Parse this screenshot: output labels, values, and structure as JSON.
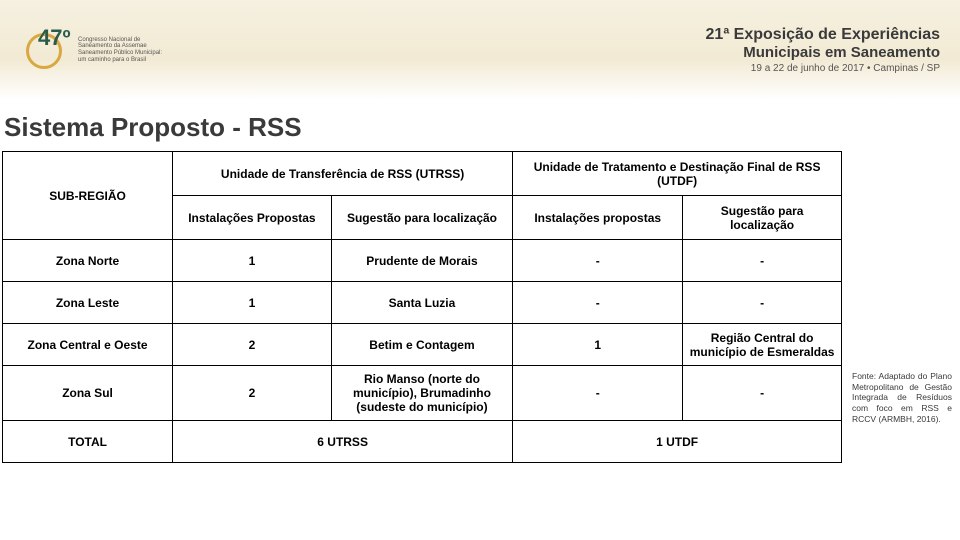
{
  "header": {
    "logo_number": "47º",
    "logo_sub": "Congresso Nacional de\nSaneamento da Assemae\nSaneamento Público Municipal:\num caminho para o Brasil",
    "event_line1": "21ª Exposição de Experiências",
    "event_line2": "Municipais em Saneamento",
    "event_line3": "19 a 22 de junho de 2017 • Campinas / SP"
  },
  "title": "Sistema Proposto - RSS",
  "table": {
    "headers": {
      "sub_regiao": "SUB-REGIÃO",
      "group1": "Unidade de Transferência de RSS (UTRSS)",
      "group2": "Unidade de Tratamento e Destinação Final de RSS (UTDF)",
      "col_a": "Instalações Propostas",
      "col_b": "Sugestão para localização",
      "col_c": "Instalações propostas",
      "col_d": "Sugestão para localização"
    },
    "rows": [
      {
        "sub": "Zona Norte",
        "a": "1",
        "b": "Prudente de Morais",
        "c": "-",
        "d": "-"
      },
      {
        "sub": "Zona Leste",
        "a": "1",
        "b": "Santa Luzia",
        "c": "-",
        "d": "-"
      },
      {
        "sub": "Zona Central e Oeste",
        "a": "2",
        "b": "Betim e Contagem",
        "c": "1",
        "d": "Região Central do município de Esmeraldas"
      },
      {
        "sub": "Zona Sul",
        "a": "2",
        "b": "Rio Manso (norte do município), Brumadinho (sudeste do município)",
        "c": "-",
        "d": "-"
      }
    ],
    "total": {
      "label": "TOTAL",
      "utrss": "6 UTRSS",
      "utdf": "1 UTDF"
    }
  },
  "source": "Fonte: Adaptado do Plano Metropolitano de Gestão Integrada de Resíduos com foco em RSS e RCCV (ARMBH, 2016).",
  "colors": {
    "header_bg_top": "#f5f0e0",
    "header_bg_bottom": "#ffffff",
    "title_color": "#3a3a3a",
    "table_border": "#000000",
    "text_color": "#000000"
  }
}
